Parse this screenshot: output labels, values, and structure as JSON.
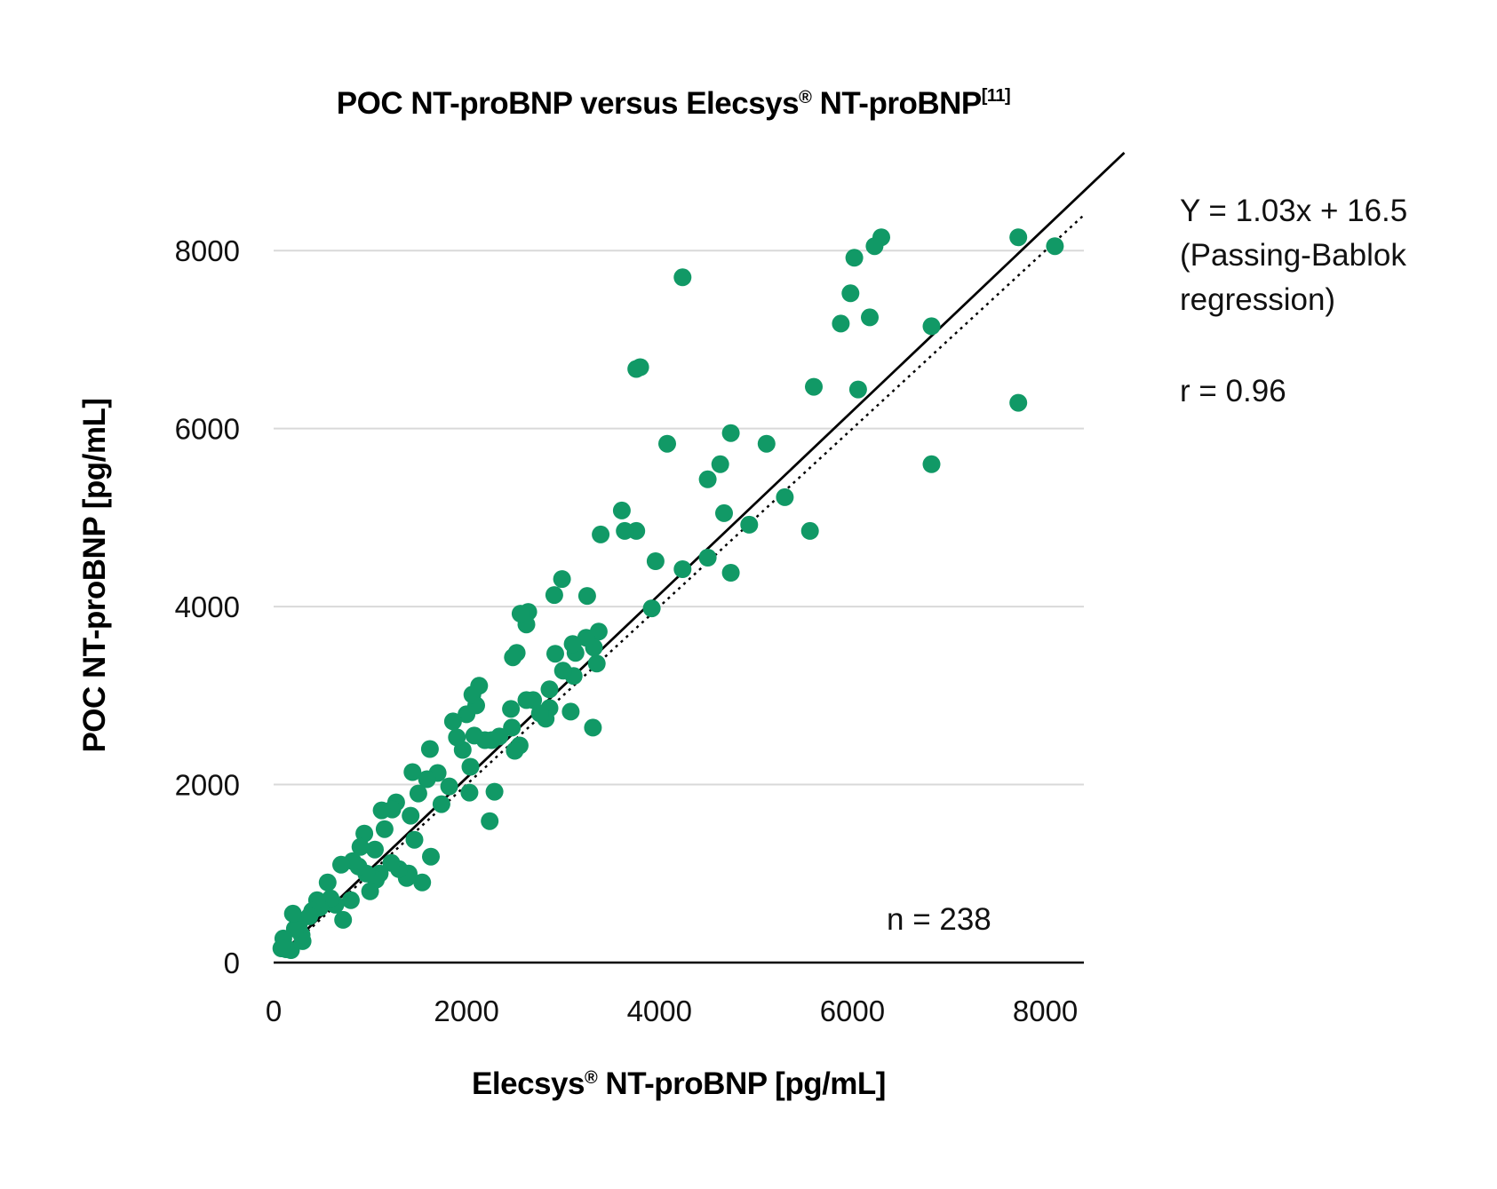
{
  "chart_data": {
    "type": "scatter",
    "title": "POC NT-proBNP versus Elecsys",
    "title_mark": "®",
    "title_rest": " NT-proBNP",
    "title_ref": "[11]",
    "xlabel": "Elecsys",
    "xlabel_mark": "®",
    "xlabel_rest": " NT-proBNP [pg/mL]",
    "ylabel": "POC NT-proBNP [pg/mL]",
    "xlim": [
      0,
      8400
    ],
    "ylim": [
      0,
      9100
    ],
    "x_ticks": [
      "0",
      "2000",
      "4000",
      "6000",
      "8000"
    ],
    "y_ticks": [
      "0",
      "2000",
      "4000",
      "6000",
      "8000"
    ],
    "x_tick_values": [
      0,
      2000,
      4000,
      6000,
      8000
    ],
    "y_tick_values": [
      0,
      2000,
      4000,
      6000,
      8000
    ],
    "grid": "horizontal",
    "colors": {
      "points": "#119966",
      "regression_line": "#000000",
      "identity_line": "#000000",
      "grid": "#d9d9d9",
      "axis": "#000000"
    },
    "regression": {
      "slope": 1.03,
      "intercept": 16.5,
      "style": "solid"
    },
    "identity_line": {
      "slope": 1.0,
      "intercept": 0,
      "style": "dotted"
    },
    "annotations": {
      "equation": "Y = 1.03x + 16.5",
      "method_line1": "(Passing-Bablok",
      "method_line2": "regression)",
      "r": "r = 0.96",
      "n": "n = 238"
    },
    "points": [
      [
        8100,
        8050
      ],
      [
        7720,
        8150
      ],
      [
        7720,
        6290
      ],
      [
        6820,
        7150
      ],
      [
        6820,
        5600
      ],
      [
        6300,
        8150
      ],
      [
        6230,
        8050
      ],
      [
        6180,
        7250
      ],
      [
        6060,
        6440
      ],
      [
        6020,
        7920
      ],
      [
        5980,
        7520
      ],
      [
        5880,
        7180
      ],
      [
        5600,
        6470
      ],
      [
        5560,
        4850
      ],
      [
        5300,
        5230
      ],
      [
        5110,
        5830
      ],
      [
        4930,
        4920
      ],
      [
        4740,
        5950
      ],
      [
        4740,
        4380
      ],
      [
        4670,
        5050
      ],
      [
        4630,
        5600
      ],
      [
        4500,
        5430
      ],
      [
        4500,
        4550
      ],
      [
        4240,
        7700
      ],
      [
        4240,
        4420
      ],
      [
        4080,
        5830
      ],
      [
        3960,
        4510
      ],
      [
        3920,
        3980
      ],
      [
        3800,
        6690
      ],
      [
        3760,
        6670
      ],
      [
        3760,
        4850
      ],
      [
        3640,
        4850
      ],
      [
        3610,
        5080
      ],
      [
        3390,
        4810
      ],
      [
        3370,
        3720
      ],
      [
        3350,
        3360
      ],
      [
        3320,
        3540
      ],
      [
        3310,
        2640
      ],
      [
        3250,
        4120
      ],
      [
        3240,
        3650
      ],
      [
        3130,
        3480
      ],
      [
        3110,
        3220
      ],
      [
        3100,
        3580
      ],
      [
        3080,
        2820
      ],
      [
        3000,
        3280
      ],
      [
        2990,
        4310
      ],
      [
        2920,
        3470
      ],
      [
        2910,
        4130
      ],
      [
        2860,
        3070
      ],
      [
        2860,
        2860
      ],
      [
        2820,
        2740
      ],
      [
        2760,
        2800
      ],
      [
        2690,
        2950
      ],
      [
        2640,
        3940
      ],
      [
        2620,
        3800
      ],
      [
        2620,
        2950
      ],
      [
        2560,
        3920
      ],
      [
        2550,
        2440
      ],
      [
        2520,
        3480
      ],
      [
        2500,
        2380
      ],
      [
        2480,
        3430
      ],
      [
        2470,
        2640
      ],
      [
        2460,
        2850
      ],
      [
        2340,
        2540
      ],
      [
        2290,
        1920
      ],
      [
        2260,
        2500
      ],
      [
        2240,
        1590
      ],
      [
        2190,
        2500
      ],
      [
        2130,
        3110
      ],
      [
        2100,
        2890
      ],
      [
        2080,
        2550
      ],
      [
        2060,
        3010
      ],
      [
        2040,
        2200
      ],
      [
        2030,
        1910
      ],
      [
        2000,
        2790
      ],
      [
        1960,
        2390
      ],
      [
        1900,
        2530
      ],
      [
        1860,
        2710
      ],
      [
        1820,
        1980
      ],
      [
        1700,
        2130
      ],
      [
        1740,
        1780
      ],
      [
        1630,
        1190
      ],
      [
        1620,
        2400
      ],
      [
        1590,
        2060
      ],
      [
        1540,
        900
      ],
      [
        1500,
        1900
      ],
      [
        1460,
        1380
      ],
      [
        1440,
        2140
      ],
      [
        1420,
        1650
      ],
      [
        1400,
        1000
      ],
      [
        1380,
        950
      ],
      [
        1300,
        1050
      ],
      [
        1270,
        1800
      ],
      [
        1230,
        1720
      ],
      [
        1220,
        1120
      ],
      [
        1150,
        1500
      ],
      [
        1120,
        1710
      ],
      [
        1100,
        1000
      ],
      [
        1060,
        930
      ],
      [
        1050,
        1270
      ],
      [
        1000,
        800
      ],
      [
        960,
        1000
      ],
      [
        940,
        1450
      ],
      [
        900,
        1300
      ],
      [
        880,
        1080
      ],
      [
        820,
        1140
      ],
      [
        800,
        700
      ],
      [
        720,
        480
      ],
      [
        700,
        1100
      ],
      [
        640,
        650
      ],
      [
        590,
        720
      ],
      [
        560,
        900
      ],
      [
        480,
        620
      ],
      [
        450,
        700
      ],
      [
        400,
        580
      ],
      [
        370,
        520
      ],
      [
        300,
        240
      ],
      [
        290,
        310
      ],
      [
        260,
        420
      ],
      [
        220,
        380
      ],
      [
        200,
        550
      ],
      [
        180,
        140
      ],
      [
        130,
        150
      ],
      [
        100,
        270
      ],
      [
        80,
        160
      ]
    ]
  }
}
